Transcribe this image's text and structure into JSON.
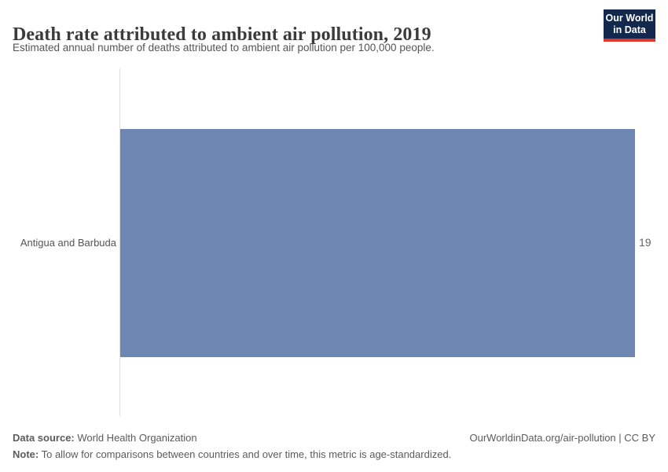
{
  "header": {
    "title": "Death rate attributed to ambient air pollution, 2019",
    "subtitle": "Estimated annual number of deaths attributed to ambient air pollution per 100,000 people.",
    "logo": {
      "line1": "Our World",
      "line2": "in Data",
      "bg_color": "#12294d",
      "accent_color": "#dc3a2c"
    }
  },
  "chart_data": {
    "type": "bar",
    "orientation": "horizontal",
    "title": "Death rate attributed to ambient air pollution, 2019",
    "subtitle": "Estimated annual number of deaths attributed to ambient air pollution per 100,000 people.",
    "categories": [
      "Antigua and Barbuda"
    ],
    "values": [
      19
    ],
    "value_labels": [
      "19"
    ],
    "xlabel": "",
    "ylabel": "",
    "xlim": [
      0,
      19
    ],
    "grid": false,
    "legend": false,
    "bar_color": "#6e87b2",
    "axis_line_color": "#dedede"
  },
  "footer": {
    "data_source_label": "Data source:",
    "data_source_value": " World Health Organization",
    "note_label": "Note:",
    "note_value": " To allow for comparisons between countries and over time, this metric is age-standardized.",
    "attribution": "OurWorldinData.org/air-pollution | CC BY"
  }
}
